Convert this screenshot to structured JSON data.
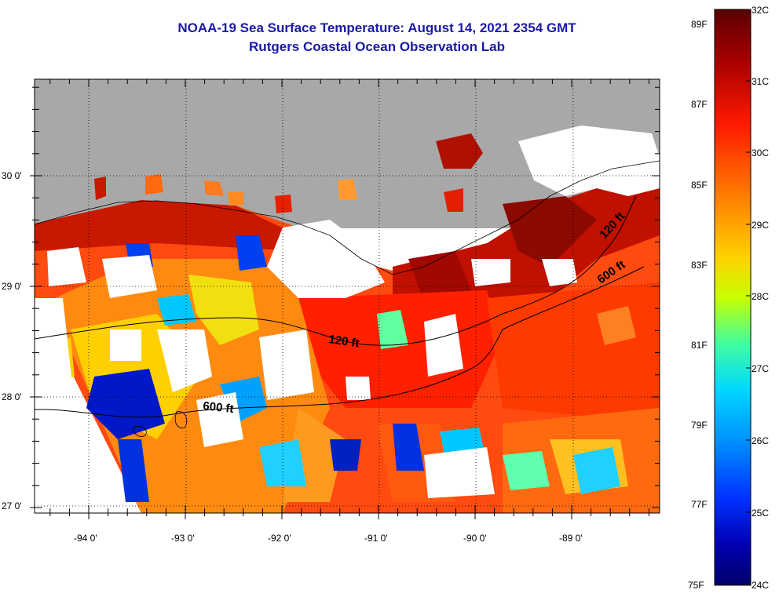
{
  "title": "NOAA-19 Sea Surface Temperature:  August 14, 2021 2354 GMT",
  "subtitle": "Rutgers Coastal Ocean Observation Lab",
  "lat_labels": [
    "30 0'",
    "29 0'",
    "28 0'",
    "27 0'"
  ],
  "lon_labels": [
    "-94 0'",
    "-93 0'",
    "-92 0'",
    "-91 0'",
    "-90 0'",
    "-89 0'"
  ],
  "contour_labels": {
    "c120_west": "120 ft",
    "c120_east": "120 ft",
    "c600_west": "600 ft",
    "c600_east": "600 ft"
  },
  "colorbar": {
    "celsius": [
      "32C",
      "31C",
      "30C",
      "29C",
      "28C",
      "27C",
      "26C",
      "25C",
      "24C"
    ],
    "fahrenheit": [
      "89F",
      "87F",
      "85F",
      "83F",
      "81F",
      "79F",
      "77F",
      "75F"
    ],
    "gradient": [
      "#5a0000",
      "#a80000",
      "#ff1a00",
      "#ff7a00",
      "#ffd000",
      "#c8ff00",
      "#40ffa0",
      "#00d8ff",
      "#0090ff",
      "#0030ff",
      "#0000b0",
      "#00006a"
    ]
  },
  "colors": {
    "land": "#a8a8a8",
    "no_data": "#ffffff",
    "title": "#1a1aa6"
  }
}
